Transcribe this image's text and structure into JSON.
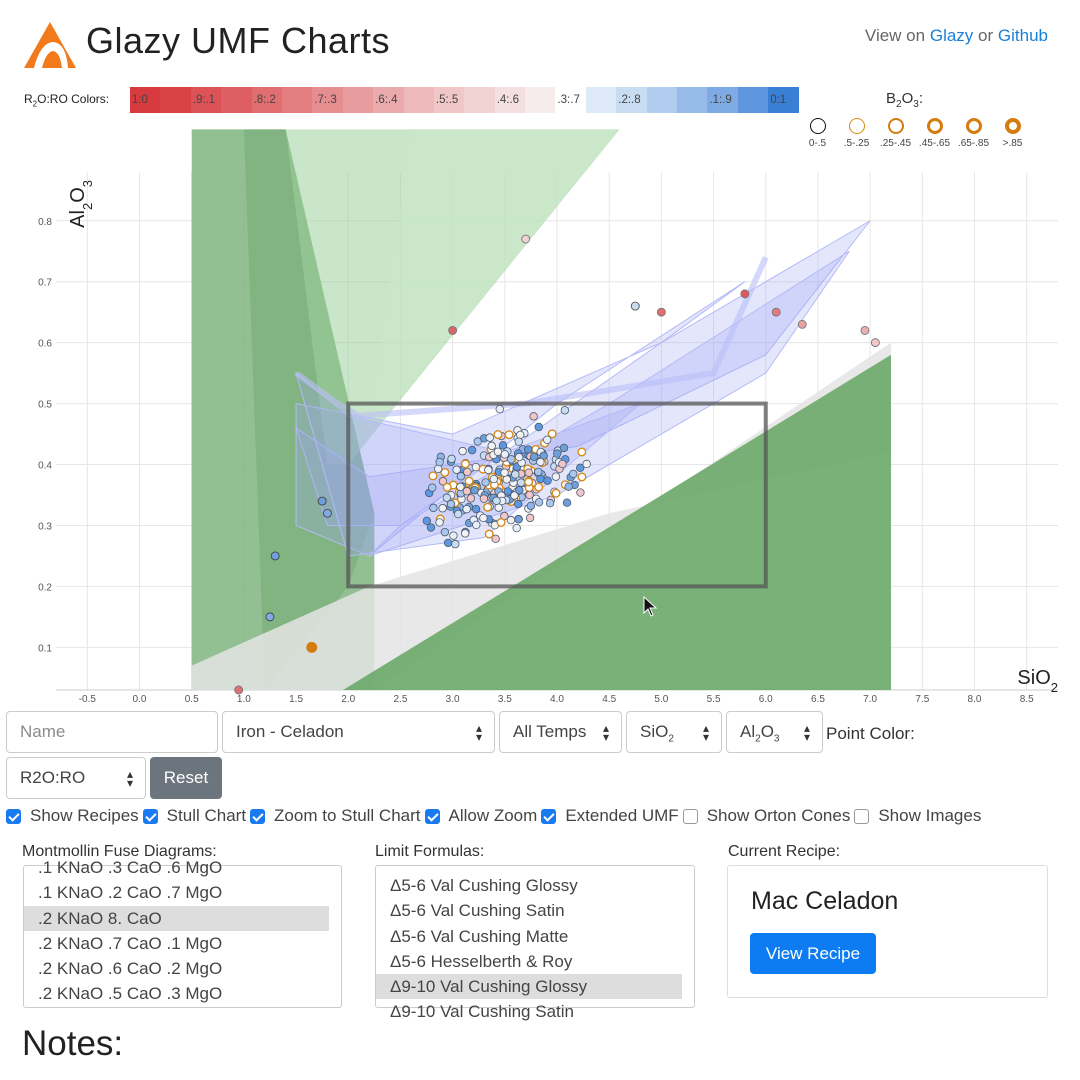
{
  "header": {
    "title": "Glazy UMF Charts",
    "view_prefix": "View on",
    "link_glazy": "Glazy",
    "link_sep": "or",
    "link_github": "Github"
  },
  "r2o_scale": {
    "label": "R2O:RO Colors:",
    "swatches": [
      {
        "label": "1:0",
        "color": "#d73a3f"
      },
      {
        "label": "",
        "color": "#da4346"
      },
      {
        "label": ".9:.1",
        "color": "#dd5256"
      },
      {
        "label": "",
        "color": "#df5e62"
      },
      {
        "label": ".8:.2",
        "color": "#e16e70"
      },
      {
        "label": "",
        "color": "#e37d80"
      },
      {
        "label": ".7:.3",
        "color": "#e68d8f"
      },
      {
        "label": "",
        "color": "#e89c9e"
      },
      {
        "label": ".6:.4",
        "color": "#ebaaac"
      },
      {
        "label": "",
        "color": "#edb9ba"
      },
      {
        "label": ".5:.5",
        "color": "#f0c6c7"
      },
      {
        "label": "",
        "color": "#f2d3d4"
      },
      {
        "label": ".4:.6",
        "color": "#f4e0e0"
      },
      {
        "label": "",
        "color": "#f6ecec"
      },
      {
        "label": ".3:.7",
        "color": "#ffffff"
      },
      {
        "label": "",
        "color": "#dde9f6"
      },
      {
        "label": ".2:.8",
        "color": "#c8dcf2"
      },
      {
        "label": "",
        "color": "#b0ccee"
      },
      {
        "label": "",
        "color": "#98bce9"
      },
      {
        "label": ".1:.9",
        "color": "#7fabe4"
      },
      {
        "label": "",
        "color": "#5f97de"
      },
      {
        "label": "0:1",
        "color": "#3a7fd6"
      }
    ]
  },
  "b2o3_legend": {
    "title": "B2O3:",
    "items": [
      {
        "label": "0-.5",
        "color": "#111111",
        "stroke": 1.5
      },
      {
        "label": ".5-.25",
        "color": "#d68a1a",
        "stroke": 1.5
      },
      {
        "label": ".25-.45",
        "color": "#d47c10",
        "stroke": 2.2
      },
      {
        "label": ".45-.65",
        "color": "#d47c10",
        "stroke": 3
      },
      {
        "label": ".65-.85",
        "color": "#d47c10",
        "stroke": 3.6
      },
      {
        "label": ">.85",
        "color": "#d47c10",
        "stroke": 4.2
      }
    ]
  },
  "chart_data": {
    "type": "scatter",
    "xlabel": "SiO2",
    "ylabel": "Al2O3",
    "xlim": [
      -0.8,
      8.8
    ],
    "ylim": [
      0.03,
      0.88
    ],
    "x_ticks": [
      "-0.5",
      "0.0",
      "0.5",
      "1.0",
      "1.5",
      "2.0",
      "2.5",
      "3.0",
      "3.5",
      "4.0",
      "4.5",
      "5.0",
      "5.5",
      "6.0",
      "6.5",
      "7.0",
      "7.5",
      "8.0",
      "8.5"
    ],
    "y_ticks": [
      "0.1",
      "0.2",
      "0.3",
      "0.4",
      "0.5",
      "0.6",
      "0.7",
      "0.8"
    ],
    "zoom_box": {
      "x": [
        2.0,
        6.0
      ],
      "y": [
        0.2,
        0.5
      ]
    },
    "outliers": [
      {
        "x": 3.7,
        "y": 0.77,
        "c": "#f0d0d0",
        "ring": "#777"
      },
      {
        "x": 3.0,
        "y": 0.62,
        "c": "#d9646a",
        "ring": "#777"
      },
      {
        "x": 5.8,
        "y": 0.68,
        "c": "#dd5a5e",
        "ring": "#777"
      },
      {
        "x": 6.1,
        "y": 0.65,
        "c": "#e47a7e",
        "ring": "#777"
      },
      {
        "x": 6.35,
        "y": 0.63,
        "c": "#e8a0a2",
        "ring": "#777"
      },
      {
        "x": 6.95,
        "y": 0.62,
        "c": "#ebb0b2",
        "ring": "#777"
      },
      {
        "x": 7.05,
        "y": 0.6,
        "c": "#f0c6c7",
        "ring": "#777"
      },
      {
        "x": 4.75,
        "y": 0.66,
        "c": "#c8dcf2",
        "ring": "#555"
      },
      {
        "x": 5.0,
        "y": 0.65,
        "c": "#e16e70",
        "ring": "#777"
      },
      {
        "x": 1.3,
        "y": 0.25,
        "c": "#6f9fdb",
        "ring": "#444"
      },
      {
        "x": 1.25,
        "y": 0.15,
        "c": "#7fabe4",
        "ring": "#444"
      },
      {
        "x": 1.65,
        "y": 0.1,
        "c": "#d47c10",
        "ring": "#d47c10"
      },
      {
        "x": 0.95,
        "y": 0.03,
        "c": "#e16e70",
        "ring": "#777"
      },
      {
        "x": 1.75,
        "y": 0.34,
        "c": "#6f9fdb",
        "ring": "#444"
      },
      {
        "x": 1.8,
        "y": 0.32,
        "c": "#7fabe4",
        "ring": "#444"
      }
    ],
    "cluster": {
      "count": 260,
      "center": [
        3.5,
        0.38
      ],
      "spread": [
        0.55,
        0.07
      ]
    }
  },
  "controls": {
    "name_placeholder": "Name",
    "recipe_type": "Iron - Celadon",
    "temp": "All Temps",
    "x_oxide": "SiO2",
    "y_oxide": "Al2O3",
    "point_color_label": "Point Color:",
    "point_color_value": "R2O:RO",
    "reset_label": "Reset"
  },
  "checkboxes": [
    {
      "label": "Show Recipes",
      "checked": true
    },
    {
      "label": "Stull Chart",
      "checked": true
    },
    {
      "label": "Zoom to Stull Chart",
      "checked": true
    },
    {
      "label": "Allow Zoom",
      "checked": true
    },
    {
      "label": "Extended UMF",
      "checked": true
    },
    {
      "label": "Show Orton Cones",
      "checked": false
    },
    {
      "label": "Show Images",
      "checked": false
    }
  ],
  "montmollin": {
    "label": "Montmollin Fuse Diagrams:",
    "items": [
      ".1 KNaO .3 CaO .6 MgO",
      ".1 KNaO .2 CaO .7 MgO",
      ".2 KNaO 8. CaO",
      ".2 KNaO .7 CaO .1 MgO",
      ".2 KNaO .6 CaO .2 MgO",
      ".2 KNaO .5 CaO .3 MgO"
    ],
    "selected_index": 2
  },
  "limits": {
    "label": "Limit Formulas:",
    "items": [
      "Δ5-6 Val Cushing Glossy",
      "Δ5-6 Val Cushing Satin",
      "Δ5-6 Val Cushing Matte",
      "Δ5-6 Hesselberth & Roy",
      "Δ9-10 Val Cushing Glossy",
      "Δ9-10 Val Cushing Satin"
    ],
    "selected_index": 4
  },
  "current_recipe": {
    "label": "Current Recipe:",
    "name": "Mac Celadon",
    "button": "View Recipe"
  },
  "notes": {
    "heading": "Notes:"
  }
}
